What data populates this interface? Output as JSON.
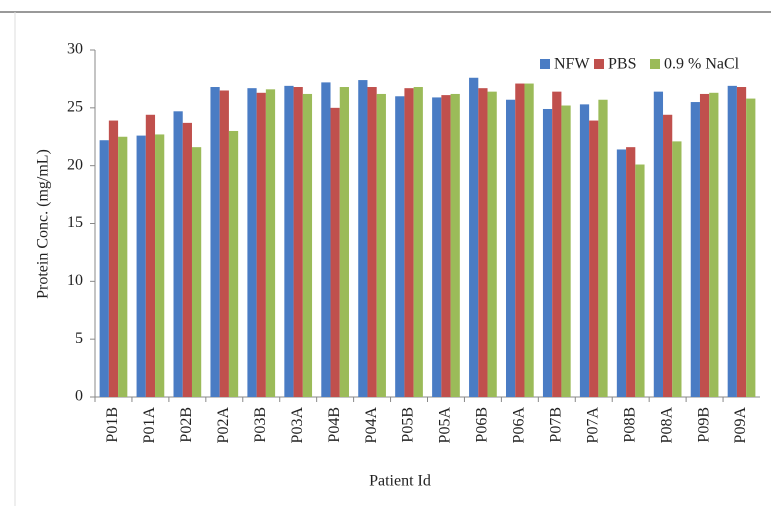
{
  "chart_data": {
    "type": "bar",
    "x_label": "Patient Id",
    "y_label": "Protein Conc. (mg/mL)",
    "categories": [
      "P01B",
      "P01A",
      "P02B",
      "P02A",
      "P03B",
      "P03A",
      "P04B",
      "P04A",
      "P05B",
      "P05A",
      "P06B",
      "P06A",
      "P07B",
      "P07A",
      "P08B",
      "P08A",
      "P09B",
      "P09A"
    ],
    "series": [
      {
        "name": "NFW",
        "color": "#4a7cc4",
        "values": [
          22.2,
          22.6,
          24.7,
          26.8,
          26.7,
          26.9,
          27.2,
          27.4,
          26.0,
          25.9,
          27.6,
          25.7,
          24.9,
          25.3,
          21.4,
          26.4,
          25.5,
          26.9
        ]
      },
      {
        "name": "PBS",
        "color": "#c0504d",
        "values": [
          23.9,
          24.4,
          23.7,
          26.5,
          26.3,
          26.8,
          25.0,
          26.8,
          26.7,
          26.1,
          26.7,
          27.1,
          26.4,
          23.9,
          21.6,
          24.4,
          26.2,
          26.8
        ]
      },
      {
        "name": "0.9 % NaCl",
        "color": "#9bbb59",
        "values": [
          22.5,
          22.7,
          21.6,
          23.0,
          26.6,
          26.2,
          26.8,
          26.2,
          26.8,
          26.2,
          26.4,
          27.1,
          25.2,
          25.7,
          20.1,
          22.1,
          26.3,
          25.8
        ]
      }
    ],
    "ylim": [
      0,
      30
    ],
    "yticks": [
      0,
      5,
      10,
      15,
      20,
      25,
      30
    ],
    "legend": "top-right",
    "grid": false
  }
}
